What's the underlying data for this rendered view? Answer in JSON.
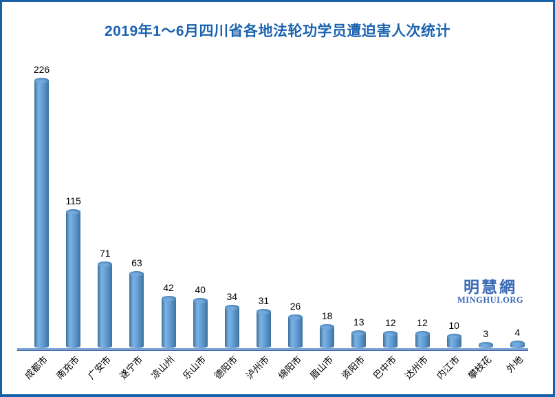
{
  "frame": {
    "border_color": "#1660a8",
    "background_color": "#ffffff"
  },
  "title": {
    "text": "2019年1～6月四川省各地法轮功学员遭迫害人次统计",
    "color": "#1b63b0"
  },
  "watermark": {
    "cn": "明慧網",
    "en": "MINGHUI.ORG",
    "color": "#3b6ab5"
  },
  "chart_data": {
    "type": "bar",
    "subtype": "cylinder-3d",
    "orientation": "vertical",
    "title": "2019年1～6月四川省各地法轮功学员遭迫害人次统计",
    "categories": [
      "成都市",
      "南充市",
      "广安市",
      "遂宁市",
      "凉山州",
      "乐山市",
      "德阳市",
      "泸州市",
      "绵阳市",
      "眉山市",
      "资阳市",
      "巴中市",
      "达州市",
      "内江市",
      "攀枝花",
      "外地"
    ],
    "values": [
      226,
      115,
      71,
      63,
      42,
      40,
      34,
      31,
      26,
      18,
      13,
      12,
      12,
      10,
      3,
      4
    ],
    "data_labels": true,
    "xlabel": "",
    "ylabel": "",
    "ylim": [
      0,
      240
    ],
    "gridlines": false,
    "legend": "none",
    "x_tick_rotation_deg": 45,
    "bar_color": "#5d9ad2",
    "bar_edge_color": "#41719c",
    "axis_line_color": "#7ba3d6",
    "label_color": "#000000"
  }
}
